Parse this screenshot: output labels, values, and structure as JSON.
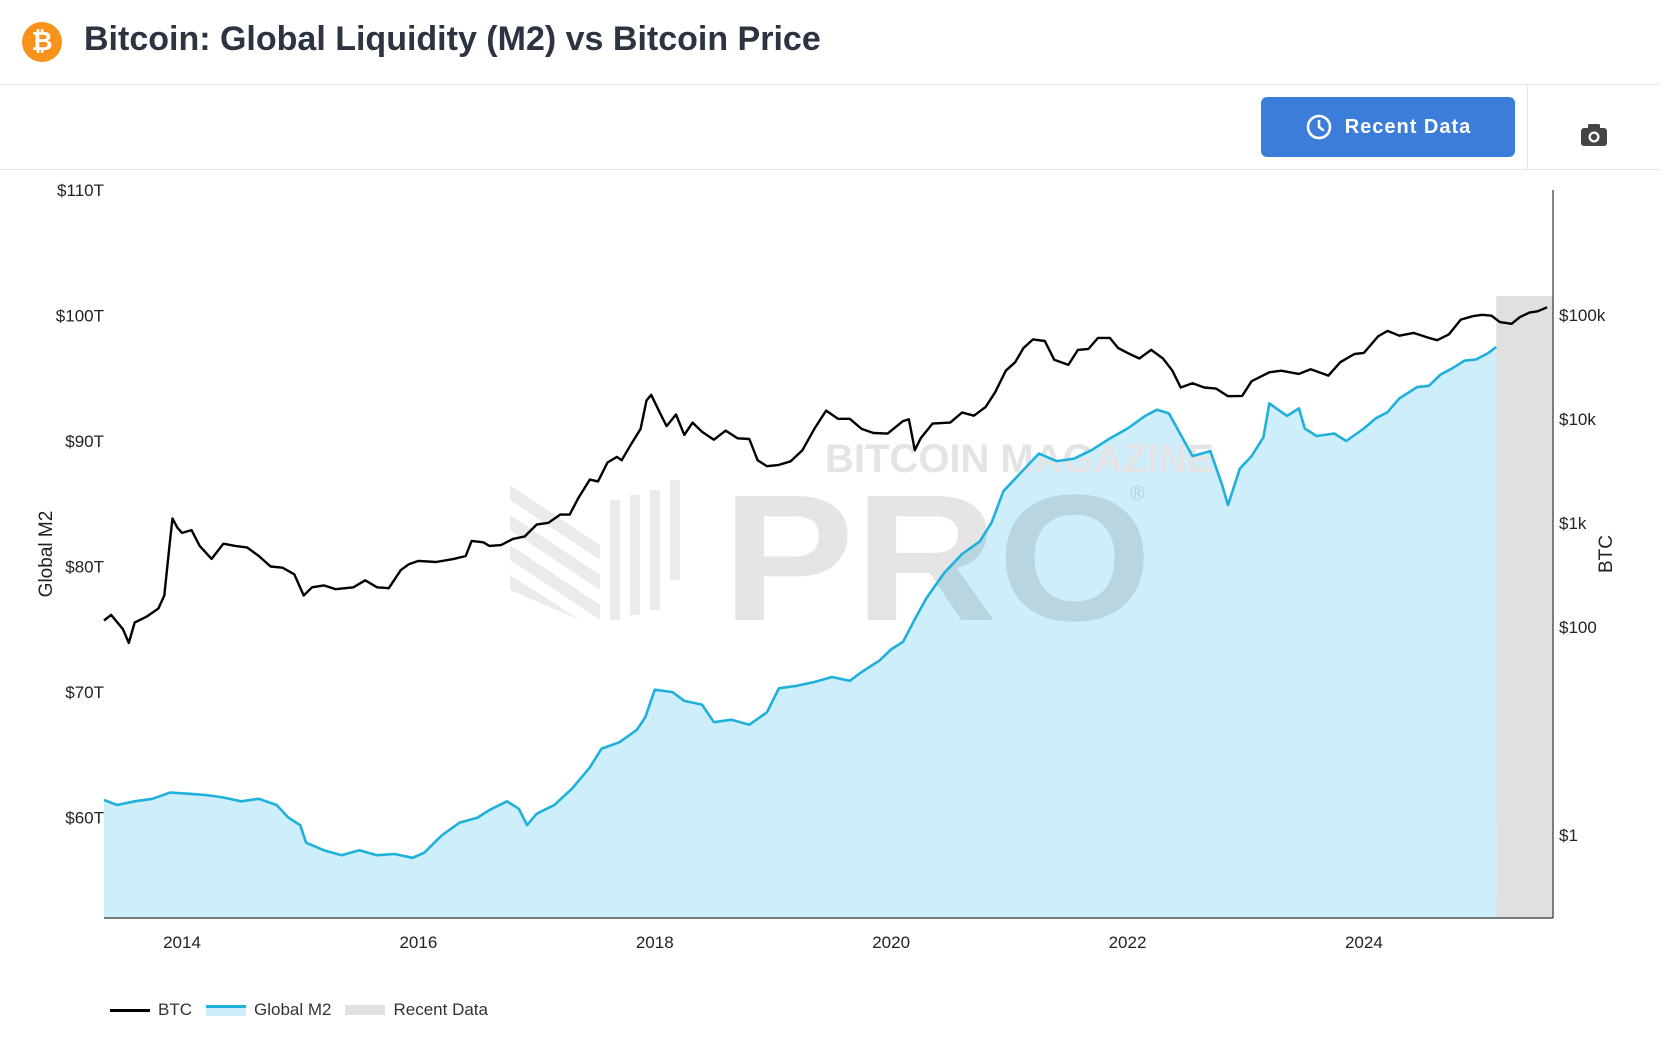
{
  "header": {
    "title": "Bitcoin: Global Liquidity (M2) vs Bitcoin Price",
    "logo_symbol": "₿",
    "logo_icon": "bitcoin-logo-icon",
    "brand_color": "#f7931a"
  },
  "toolbar": {
    "recent_data_label": "Recent Data",
    "recent_icon": "clock-icon",
    "camera_icon": "camera-icon",
    "button_color": "#3b7dd8"
  },
  "watermark": {
    "line1": "BITCOIN MAGAZINE",
    "line2": "PRO",
    "mark": "®"
  },
  "chart_data": {
    "type": "line",
    "title": "Bitcoin: Global Liquidity (M2) vs Bitcoin Price",
    "x_ticks": [
      "2014",
      "2016",
      "2018",
      "2020",
      "2022",
      "2024"
    ],
    "xlim": [
      2013.34,
      2025.6
    ],
    "left_axis": {
      "label": "Global M2",
      "range": [
        52000000000000,
        110000000000000
      ],
      "ticks": [
        {
          "value": 110000000000000,
          "label": "$110T"
        },
        {
          "value": 100000000000000,
          "label": "$100T"
        },
        {
          "value": 90000000000000,
          "label": "$90T"
        },
        {
          "value": 80000000000000,
          "label": "$80T"
        },
        {
          "value": 70000000000000,
          "label": "$70T"
        },
        {
          "value": 60000000000000,
          "label": "$60T"
        }
      ]
    },
    "right_axis": {
      "label": "BTC",
      "scale": "log",
      "range_log10": [
        -0.8,
        6.2
      ],
      "ticks": [
        {
          "value": 100000,
          "label": "$100k"
        },
        {
          "value": 10000,
          "label": "$10k"
        },
        {
          "value": 1000,
          "label": "$1k"
        },
        {
          "value": 100,
          "label": "$100"
        },
        {
          "value": 1,
          "label": "$1"
        }
      ]
    },
    "recent_data_region": [
      2025.12,
      2025.6
    ],
    "series": [
      {
        "name": "BTC",
        "axis": "right",
        "color": "#000000",
        "points": [
          [
            2013.34,
            115
          ],
          [
            2013.4,
            130
          ],
          [
            2013.5,
            95
          ],
          [
            2013.55,
            70
          ],
          [
            2013.6,
            110
          ],
          [
            2013.7,
            125
          ],
          [
            2013.8,
            150
          ],
          [
            2013.85,
            200
          ],
          [
            2013.9,
            700
          ],
          [
            2013.92,
            1100
          ],
          [
            2013.96,
            900
          ],
          [
            2014.0,
            800
          ],
          [
            2014.08,
            850
          ],
          [
            2014.15,
            600
          ],
          [
            2014.25,
            450
          ],
          [
            2014.35,
            630
          ],
          [
            2014.45,
            600
          ],
          [
            2014.55,
            580
          ],
          [
            2014.65,
            480
          ],
          [
            2014.75,
            380
          ],
          [
            2014.85,
            370
          ],
          [
            2014.95,
            320
          ],
          [
            2015.03,
            200
          ],
          [
            2015.1,
            240
          ],
          [
            2015.2,
            250
          ],
          [
            2015.3,
            230
          ],
          [
            2015.45,
            240
          ],
          [
            2015.55,
            280
          ],
          [
            2015.65,
            240
          ],
          [
            2015.75,
            235
          ],
          [
            2015.85,
            350
          ],
          [
            2015.92,
            400
          ],
          [
            2016.0,
            430
          ],
          [
            2016.15,
            420
          ],
          [
            2016.3,
            450
          ],
          [
            2016.4,
            480
          ],
          [
            2016.45,
            670
          ],
          [
            2016.55,
            650
          ],
          [
            2016.6,
            600
          ],
          [
            2016.7,
            610
          ],
          [
            2016.8,
            700
          ],
          [
            2016.9,
            740
          ],
          [
            2017.0,
            960
          ],
          [
            2017.1,
            1000
          ],
          [
            2017.2,
            1200
          ],
          [
            2017.28,
            1200
          ],
          [
            2017.35,
            1700
          ],
          [
            2017.45,
            2600
          ],
          [
            2017.52,
            2500
          ],
          [
            2017.6,
            3800
          ],
          [
            2017.68,
            4300
          ],
          [
            2017.72,
            4000
          ],
          [
            2017.8,
            5700
          ],
          [
            2017.88,
            8000
          ],
          [
            2017.93,
            15000
          ],
          [
            2017.97,
            17000
          ],
          [
            2018.05,
            11000
          ],
          [
            2018.1,
            8500
          ],
          [
            2018.18,
            11000
          ],
          [
            2018.25,
            7000
          ],
          [
            2018.32,
            9200
          ],
          [
            2018.4,
            7500
          ],
          [
            2018.5,
            6300
          ],
          [
            2018.6,
            7700
          ],
          [
            2018.7,
            6500
          ],
          [
            2018.8,
            6400
          ],
          [
            2018.87,
            4000
          ],
          [
            2018.95,
            3500
          ],
          [
            2019.05,
            3600
          ],
          [
            2019.15,
            3900
          ],
          [
            2019.25,
            5000
          ],
          [
            2019.35,
            8000
          ],
          [
            2019.45,
            12000
          ],
          [
            2019.55,
            10000
          ],
          [
            2019.65,
            10000
          ],
          [
            2019.75,
            8000
          ],
          [
            2019.85,
            7300
          ],
          [
            2019.97,
            7200
          ],
          [
            2020.1,
            9500
          ],
          [
            2020.15,
            9900
          ],
          [
            2020.2,
            5000
          ],
          [
            2020.25,
            6500
          ],
          [
            2020.35,
            9000
          ],
          [
            2020.5,
            9200
          ],
          [
            2020.6,
            11500
          ],
          [
            2020.7,
            10700
          ],
          [
            2020.8,
            13000
          ],
          [
            2020.88,
            18000
          ],
          [
            2020.97,
            29000
          ],
          [
            2021.05,
            35000
          ],
          [
            2021.12,
            48000
          ],
          [
            2021.2,
            58000
          ],
          [
            2021.3,
            56000
          ],
          [
            2021.38,
            37000
          ],
          [
            2021.5,
            33000
          ],
          [
            2021.58,
            46000
          ],
          [
            2021.67,
            47000
          ],
          [
            2021.75,
            60000
          ],
          [
            2021.85,
            60000
          ],
          [
            2021.92,
            48000
          ],
          [
            2022.0,
            43000
          ],
          [
            2022.1,
            38000
          ],
          [
            2022.2,
            46000
          ],
          [
            2022.3,
            38000
          ],
          [
            2022.38,
            29000
          ],
          [
            2022.45,
            20000
          ],
          [
            2022.55,
            22000
          ],
          [
            2022.65,
            20000
          ],
          [
            2022.75,
            19500
          ],
          [
            2022.85,
            16500
          ],
          [
            2022.97,
            16600
          ],
          [
            2023.05,
            23000
          ],
          [
            2023.2,
            28000
          ],
          [
            2023.3,
            29000
          ],
          [
            2023.45,
            27000
          ],
          [
            2023.55,
            30000
          ],
          [
            2023.7,
            26000
          ],
          [
            2023.8,
            35000
          ],
          [
            2023.92,
            42000
          ],
          [
            2024.0,
            43000
          ],
          [
            2024.12,
            62000
          ],
          [
            2024.2,
            70000
          ],
          [
            2024.3,
            63000
          ],
          [
            2024.42,
            67000
          ],
          [
            2024.55,
            60000
          ],
          [
            2024.62,
            57000
          ],
          [
            2024.72,
            65000
          ],
          [
            2024.82,
            90000
          ],
          [
            2024.92,
            97000
          ],
          [
            2025.0,
            100000
          ],
          [
            2025.08,
            98000
          ],
          [
            2025.15,
            85000
          ],
          [
            2025.25,
            82000
          ],
          [
            2025.32,
            95000
          ],
          [
            2025.4,
            105000
          ],
          [
            2025.47,
            108000
          ],
          [
            2025.55,
            118000
          ]
        ]
      },
      {
        "name": "Global M2",
        "axis": "left",
        "color": "#1fb0dc",
        "fill": "#cdeefa",
        "points": [
          [
            2013.34,
            61.4
          ],
          [
            2013.45,
            61.0
          ],
          [
            2013.6,
            61.3
          ],
          [
            2013.75,
            61.5
          ],
          [
            2013.9,
            62.0
          ],
          [
            2014.05,
            61.9
          ],
          [
            2014.2,
            61.8
          ],
          [
            2014.35,
            61.6
          ],
          [
            2014.5,
            61.3
          ],
          [
            2014.65,
            61.5
          ],
          [
            2014.8,
            61.0
          ],
          [
            2014.9,
            60.0
          ],
          [
            2015.0,
            59.4
          ],
          [
            2015.05,
            58.0
          ],
          [
            2015.2,
            57.4
          ],
          [
            2015.35,
            57.0
          ],
          [
            2015.5,
            57.4
          ],
          [
            2015.65,
            57.0
          ],
          [
            2015.8,
            57.1
          ],
          [
            2015.95,
            56.8
          ],
          [
            2016.05,
            57.2
          ],
          [
            2016.2,
            58.6
          ],
          [
            2016.35,
            59.6
          ],
          [
            2016.5,
            60.0
          ],
          [
            2016.6,
            60.6
          ],
          [
            2016.75,
            61.3
          ],
          [
            2016.85,
            60.7
          ],
          [
            2016.92,
            59.4
          ],
          [
            2017.0,
            60.3
          ],
          [
            2017.15,
            61.0
          ],
          [
            2017.3,
            62.3
          ],
          [
            2017.45,
            64.0
          ],
          [
            2017.55,
            65.5
          ],
          [
            2017.7,
            66.0
          ],
          [
            2017.85,
            67.0
          ],
          [
            2017.92,
            68.0
          ],
          [
            2018.0,
            70.2
          ],
          [
            2018.15,
            70.0
          ],
          [
            2018.25,
            69.3
          ],
          [
            2018.4,
            69.0
          ],
          [
            2018.5,
            67.6
          ],
          [
            2018.65,
            67.8
          ],
          [
            2018.8,
            67.4
          ],
          [
            2018.95,
            68.4
          ],
          [
            2019.05,
            70.3
          ],
          [
            2019.2,
            70.5
          ],
          [
            2019.35,
            70.8
          ],
          [
            2019.5,
            71.2
          ],
          [
            2019.65,
            70.9
          ],
          [
            2019.75,
            71.6
          ],
          [
            2019.9,
            72.5
          ],
          [
            2020.0,
            73.4
          ],
          [
            2020.1,
            74.0
          ],
          [
            2020.2,
            75.8
          ],
          [
            2020.3,
            77.5
          ],
          [
            2020.45,
            79.5
          ],
          [
            2020.6,
            81.0
          ],
          [
            2020.75,
            82.0
          ],
          [
            2020.85,
            83.5
          ],
          [
            2020.95,
            86.0
          ],
          [
            2021.1,
            87.5
          ],
          [
            2021.25,
            89.0
          ],
          [
            2021.4,
            88.4
          ],
          [
            2021.55,
            88.6
          ],
          [
            2021.7,
            89.3
          ],
          [
            2021.85,
            90.2
          ],
          [
            2022.0,
            91.0
          ],
          [
            2022.15,
            92.0
          ],
          [
            2022.25,
            92.5
          ],
          [
            2022.35,
            92.2
          ],
          [
            2022.45,
            90.5
          ],
          [
            2022.55,
            88.8
          ],
          [
            2022.7,
            89.2
          ],
          [
            2022.8,
            86.5
          ],
          [
            2022.85,
            84.9
          ],
          [
            2022.95,
            87.8
          ],
          [
            2023.05,
            88.8
          ],
          [
            2023.15,
            90.3
          ],
          [
            2023.2,
            93.0
          ],
          [
            2023.35,
            92.0
          ],
          [
            2023.45,
            92.6
          ],
          [
            2023.5,
            91.0
          ],
          [
            2023.6,
            90.4
          ],
          [
            2023.75,
            90.6
          ],
          [
            2023.85,
            90.0
          ],
          [
            2024.0,
            91.0
          ],
          [
            2024.1,
            91.8
          ],
          [
            2024.2,
            92.3
          ],
          [
            2024.3,
            93.4
          ],
          [
            2024.45,
            94.3
          ],
          [
            2024.55,
            94.4
          ],
          [
            2024.65,
            95.3
          ],
          [
            2024.75,
            95.8
          ],
          [
            2024.85,
            96.4
          ],
          [
            2024.95,
            96.5
          ],
          [
            2025.05,
            97.0
          ],
          [
            2025.12,
            97.5
          ]
        ]
      }
    ],
    "legend": [
      {
        "name": "BTC",
        "color": "#000000",
        "style": "line"
      },
      {
        "name": "Global M2",
        "color": "#1fb0dc",
        "style": "area"
      },
      {
        "name": "Recent Data",
        "color": "#e0e0e0",
        "style": "area"
      }
    ]
  }
}
